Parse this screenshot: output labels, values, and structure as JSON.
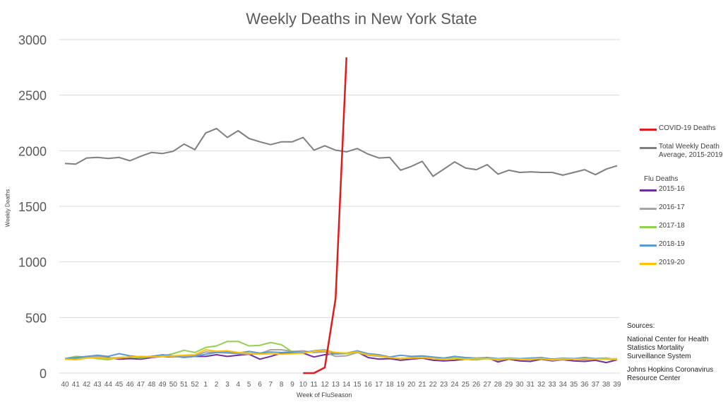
{
  "chart_data": {
    "type": "line",
    "title": "Weekly Deaths in New York State",
    "xlabel": "Week of FluSeason",
    "ylabel": "Weekly Deaths",
    "ylim": [
      0,
      3000
    ],
    "yticks": [
      0,
      500,
      1000,
      1500,
      2000,
      2500,
      3000
    ],
    "grid": true,
    "legend_position": "right",
    "categories": [
      "40",
      "41",
      "42",
      "43",
      "44",
      "45",
      "46",
      "47",
      "48",
      "49",
      "50",
      "51",
      "52",
      "1",
      "2",
      "3",
      "4",
      "5",
      "6",
      "7",
      "8",
      "9",
      "10",
      "11",
      "12",
      "13",
      "14",
      "15",
      "16",
      "17",
      "18",
      "19",
      "20",
      "21",
      "22",
      "23",
      "24",
      "25",
      "26",
      "27",
      "28",
      "29",
      "30",
      "31",
      "32",
      "33",
      "34",
      "35",
      "36",
      "37",
      "38",
      "39"
    ],
    "series": [
      {
        "name": "COVID-19 Deaths",
        "color": "#e31a1c",
        "values": [
          null,
          null,
          null,
          null,
          null,
          null,
          null,
          null,
          null,
          null,
          null,
          null,
          null,
          null,
          null,
          null,
          null,
          null,
          null,
          null,
          null,
          null,
          0,
          0,
          50,
          670,
          2840,
          null,
          null,
          null,
          null,
          null,
          null,
          null,
          null,
          null,
          null,
          null,
          null,
          null,
          null,
          null,
          null,
          null,
          null,
          null,
          null,
          null,
          null,
          null,
          null,
          null
        ]
      },
      {
        "name": "Total Weekly Death Average,  2015-2019",
        "color": "#7f7f7f",
        "values": [
          1885,
          1880,
          1935,
          1940,
          1930,
          1940,
          1910,
          1950,
          1985,
          1975,
          1995,
          2060,
          2010,
          2160,
          2200,
          2120,
          2180,
          2110,
          2080,
          2055,
          2080,
          2080,
          2120,
          2005,
          2045,
          2005,
          1990,
          2020,
          1970,
          1935,
          1940,
          1825,
          1860,
          1905,
          1770,
          1835,
          1900,
          1845,
          1830,
          1875,
          1790,
          1825,
          1805,
          1810,
          1805,
          1805,
          1780,
          1805,
          1830,
          1785,
          1835,
          1865
        ]
      },
      {
        "name": "2015-16",
        "color": "#7030a0",
        "values": [
          125,
          130,
          145,
          150,
          140,
          125,
          130,
          125,
          140,
          150,
          145,
          155,
          150,
          150,
          165,
          150,
          160,
          170,
          125,
          150,
          180,
          185,
          180,
          145,
          165,
          175,
          180,
          190,
          140,
          125,
          130,
          115,
          125,
          135,
          115,
          110,
          115,
          125,
          120,
          140,
          100,
          125,
          110,
          105,
          125,
          110,
          120,
          110,
          105,
          115,
          95,
          120
        ]
      },
      {
        "name": "2016-17",
        "color": "#a6a6a6",
        "values": [
          130,
          125,
          140,
          150,
          135,
          140,
          145,
          140,
          150,
          160,
          145,
          150,
          155,
          190,
          185,
          180,
          175,
          170,
          175,
          210,
          210,
          195,
          200,
          185,
          190,
          150,
          155,
          185,
          160,
          150,
          140,
          130,
          140,
          145,
          130,
          125,
          135,
          125,
          120,
          130,
          115,
          130,
          125,
          120,
          130,
          115,
          120,
          125,
          120,
          130,
          125,
          120
        ]
      },
      {
        "name": "2017-18",
        "color": "#92d050",
        "values": [
          130,
          150,
          145,
          130,
          120,
          140,
          145,
          135,
          150,
          155,
          175,
          205,
          185,
          230,
          245,
          285,
          285,
          245,
          250,
          275,
          255,
          190,
          185,
          195,
          205,
          170,
          175,
          190,
          170,
          160,
          140,
          130,
          135,
          140,
          130,
          125,
          135,
          130,
          125,
          135,
          120,
          130,
          125,
          120,
          135,
          125,
          130,
          125,
          135,
          130,
          125,
          130
        ]
      },
      {
        "name": "2018-19",
        "color": "#5b9bd5",
        "values": [
          130,
          140,
          150,
          160,
          150,
          175,
          155,
          145,
          150,
          165,
          155,
          140,
          150,
          170,
          185,
          190,
          180,
          195,
          180,
          190,
          185,
          190,
          185,
          200,
          210,
          175,
          180,
          200,
          175,
          165,
          145,
          160,
          150,
          155,
          145,
          135,
          150,
          140,
          135,
          140,
          130,
          135,
          130,
          135,
          140,
          125,
          135,
          130,
          140,
          130,
          135,
          120
        ]
      },
      {
        "name": "2019-20",
        "color": "#ffc000",
        "values": [
          125,
          120,
          135,
          140,
          130,
          135,
          145,
          150,
          145,
          150,
          155,
          160,
          165,
          210,
          195,
          200,
          185,
          180,
          170,
          175,
          170,
          175,
          180,
          195,
          205,
          185,
          180,
          190,
          165,
          155,
          140,
          130,
          135,
          140,
          130,
          125,
          130,
          125,
          130,
          130,
          125,
          130,
          125,
          125,
          130,
          120,
          130,
          125,
          130,
          125,
          130,
          125
        ]
      }
    ],
    "legend_heading": "Flu Deaths"
  },
  "sources": {
    "heading": "Sources:",
    "lines": [
      "National Center for Health Statistics Mortality Surveillance System",
      "Johns Hopkins Coronavirus Resource Center"
    ]
  }
}
